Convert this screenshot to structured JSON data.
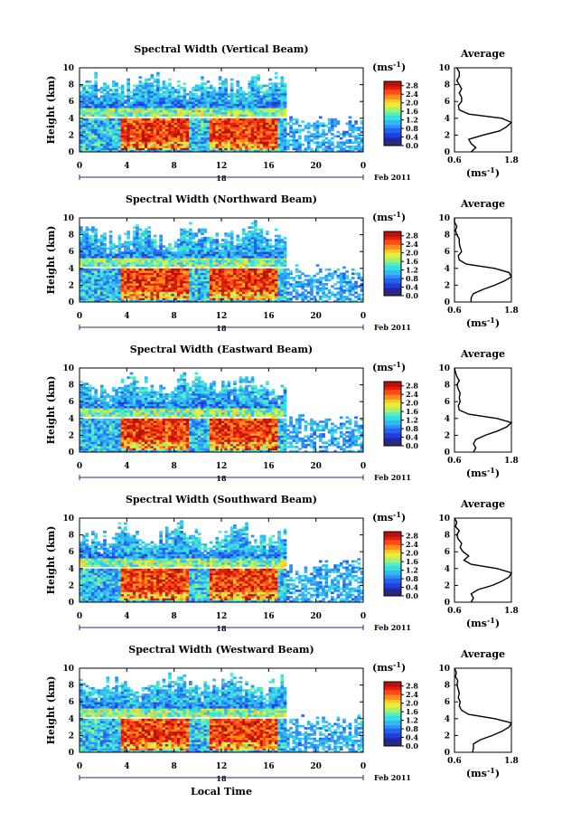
{
  "figure": {
    "xlabel": "Local Time",
    "date_marker": "18",
    "date_label": "Feb 2011",
    "colorbar_unit": "(ms",
    "colorbar_unit_exp": "-1",
    "colorbar_unit_close": ")",
    "avg_xlabel": "(ms",
    "avg_xlabel_exp": "-1",
    "avg_xlabel_close": ")",
    "colormap": [
      "#2b2b7a",
      "#2222aa",
      "#1f40d8",
      "#2463f0",
      "#2f8ef7",
      "#33b9f2",
      "#39dde6",
      "#5ef0b4",
      "#a8f170",
      "#e6ee3d",
      "#ffc52a",
      "#ff8d1e",
      "#ff4c16",
      "#e0200f",
      "#b8120a"
    ]
  },
  "chart_data": [
    {
      "type": "heatmap",
      "title": "Spectral Width (Vertical Beam)",
      "ylabel": "Height (km)",
      "xlim": [
        0,
        24
      ],
      "ylim": [
        0,
        10
      ],
      "x_ticks": [
        "0",
        "4",
        "8",
        "12",
        "16",
        "20",
        "0"
      ],
      "y_ticks": [
        "0",
        "2",
        "4",
        "6",
        "8",
        "10"
      ],
      "colorbar_ticks": [
        "0.0",
        "0.4",
        "0.8",
        "1.2",
        "1.6",
        "2.0",
        "2.4",
        "2.8"
      ],
      "avg_title": "Average",
      "avg_xticks": [
        "0.6",
        "1.8"
      ],
      "avg_ylim": [
        0,
        10
      ],
      "avg_profile": {
        "height": [
          0,
          0.5,
          1,
          1.5,
          2,
          2.5,
          3,
          3.5,
          4,
          4.5,
          5,
          5.5,
          6,
          6.5,
          7,
          7.5,
          8,
          8.5,
          9,
          9.5,
          10
        ],
        "width": [
          0.95,
          1.05,
          0.95,
          0.9,
          1.2,
          1.55,
          1.7,
          1.8,
          1.6,
          0.9,
          0.7,
          0.68,
          0.75,
          0.75,
          0.7,
          0.75,
          0.7,
          0.65,
          0.7,
          0.7,
          0.65
        ]
      }
    },
    {
      "type": "heatmap",
      "title": "Spectral Width (Northward Beam)",
      "ylabel": "Height (km)",
      "xlim": [
        0,
        24
      ],
      "ylim": [
        0,
        10
      ],
      "x_ticks": [
        "0",
        "4",
        "8",
        "12",
        "16",
        "20",
        "0"
      ],
      "y_ticks": [
        "0",
        "2",
        "4",
        "6",
        "8",
        "10"
      ],
      "colorbar_ticks": [
        "0.0",
        "0.4",
        "0.8",
        "1.2",
        "1.6",
        "2.0",
        "2.4",
        "2.8"
      ],
      "avg_title": "Average",
      "avg_xticks": [
        "0.6",
        "1.8"
      ],
      "avg_ylim": [
        0,
        10
      ],
      "avg_profile": {
        "height": [
          0,
          0.5,
          1,
          1.5,
          2,
          2.5,
          3,
          3.5,
          4,
          4.5,
          5,
          5.5,
          6,
          6.5,
          7,
          7.5,
          8,
          8.5,
          9,
          9.5,
          10
        ],
        "width": [
          0.95,
          0.95,
          1.0,
          1.2,
          1.45,
          1.65,
          1.8,
          1.75,
          1.45,
          0.85,
          0.7,
          0.68,
          0.75,
          0.72,
          0.7,
          0.7,
          0.65,
          0.62,
          0.65,
          0.6,
          0.6
        ]
      }
    },
    {
      "type": "heatmap",
      "title": "Spectral Width (Eastward Beam)",
      "ylabel": "Height (km)",
      "xlim": [
        0,
        24
      ],
      "ylim": [
        0,
        10
      ],
      "x_ticks": [
        "0",
        "4",
        "8",
        "12",
        "16",
        "20",
        "0"
      ],
      "y_ticks": [
        "0",
        "2",
        "4",
        "6",
        "8",
        "10"
      ],
      "colorbar_ticks": [
        "0.0",
        "0.4",
        "0.8",
        "1.2",
        "1.6",
        "2.0",
        "2.4",
        "2.8"
      ],
      "avg_title": "Average",
      "avg_xticks": [
        "0.6",
        "1.8"
      ],
      "avg_ylim": [
        0,
        10
      ],
      "avg_profile": {
        "height": [
          0,
          0.5,
          1,
          1.5,
          2,
          2.5,
          3,
          3.5,
          4,
          4.5,
          5,
          5.5,
          6,
          6.5,
          7,
          7.5,
          8,
          8.5,
          9,
          9.5,
          10
        ],
        "width": [
          1.0,
          1.05,
          1.0,
          1.05,
          1.25,
          1.5,
          1.7,
          1.8,
          1.5,
          0.9,
          0.7,
          0.68,
          0.72,
          0.7,
          0.72,
          0.68,
          0.65,
          0.7,
          0.65,
          0.62,
          0.6
        ]
      }
    },
    {
      "type": "heatmap",
      "title": "Spectral Width (Southward Beam)",
      "ylabel": "Height (km)",
      "xlim": [
        0,
        24
      ],
      "ylim": [
        0,
        10
      ],
      "x_ticks": [
        "0",
        "4",
        "8",
        "12",
        "16",
        "20",
        "0"
      ],
      "y_ticks": [
        "0",
        "2",
        "4",
        "6",
        "8",
        "10"
      ],
      "colorbar_ticks": [
        "0.0",
        "0.4",
        "0.8",
        "1.2",
        "1.6",
        "2.0",
        "2.4",
        "2.8"
      ],
      "avg_title": "Average",
      "avg_xticks": [
        "0.6",
        "1.8"
      ],
      "avg_ylim": [
        0,
        10
      ],
      "avg_profile": {
        "height": [
          0,
          0.5,
          1,
          1.5,
          2,
          2.5,
          3,
          3.5,
          4,
          4.5,
          5,
          5.5,
          6,
          6.5,
          7,
          7.5,
          8,
          8.5,
          9,
          9.5,
          10
        ],
        "width": [
          0.95,
          1.0,
          0.95,
          1.1,
          1.4,
          1.6,
          1.75,
          1.8,
          1.5,
          0.95,
          0.8,
          0.9,
          0.78,
          0.72,
          0.75,
          0.68,
          0.65,
          0.7,
          0.62,
          0.65,
          0.6
        ]
      }
    },
    {
      "type": "heatmap",
      "title": "Spectral Width (Westward Beam)",
      "ylabel": "Height (km)",
      "xlim": [
        0,
        24
      ],
      "ylim": [
        0,
        10
      ],
      "x_ticks": [
        "0",
        "4",
        "8",
        "12",
        "16",
        "20",
        "0"
      ],
      "y_ticks": [
        "0",
        "2",
        "4",
        "6",
        "8",
        "10"
      ],
      "colorbar_ticks": [
        "0.0",
        "0.4",
        "0.8",
        "1.2",
        "1.6",
        "2.0",
        "2.4",
        "2.8"
      ],
      "avg_title": "Average",
      "avg_xticks": [
        "0.6",
        "1.8"
      ],
      "avg_ylim": [
        0,
        10
      ],
      "avg_profile": {
        "height": [
          0,
          0.5,
          1,
          1.5,
          2,
          2.5,
          3,
          3.5,
          4,
          4.5,
          5,
          5.5,
          6,
          6.5,
          7,
          7.5,
          8,
          8.5,
          9,
          9.5,
          10
        ],
        "width": [
          0.98,
          1.0,
          1.0,
          1.15,
          1.4,
          1.6,
          1.75,
          1.8,
          1.45,
          0.9,
          0.75,
          0.7,
          0.72,
          0.68,
          0.7,
          0.68,
          0.65,
          0.67,
          0.62,
          0.64,
          0.6
        ]
      }
    }
  ]
}
